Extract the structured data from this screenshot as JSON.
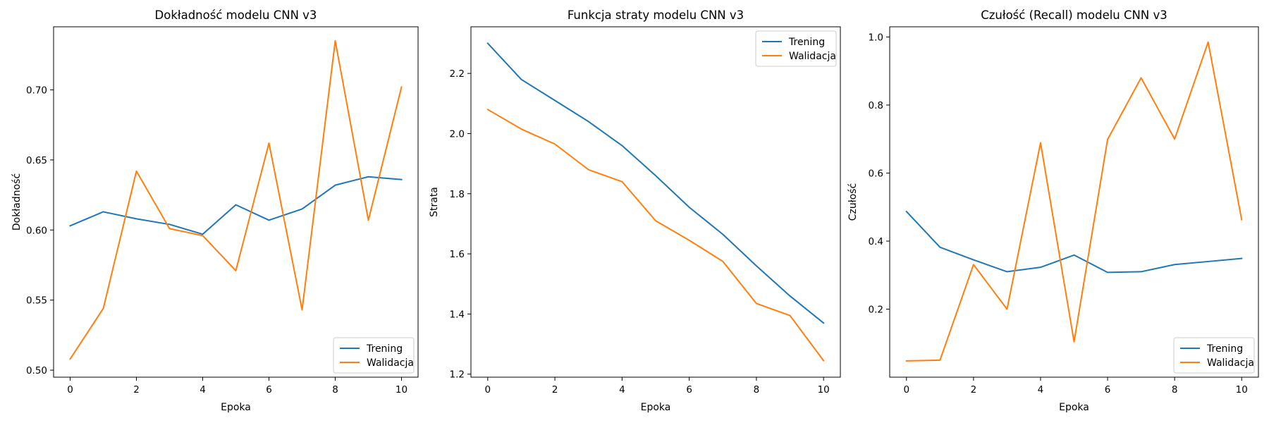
{
  "chart_data": [
    {
      "type": "line",
      "title": "Dokładność modelu CNN v3",
      "xlabel": "Epoka",
      "ylabel": "Dokładność",
      "x": [
        0,
        1,
        2,
        3,
        4,
        5,
        6,
        7,
        8,
        9,
        10
      ],
      "xlim": [
        -0.5,
        10.5
      ],
      "ylim": [
        0.495,
        0.745
      ],
      "xticks": [
        0,
        2,
        4,
        6,
        8,
        10
      ],
      "yticks": [
        0.5,
        0.55,
        0.6,
        0.65,
        0.7
      ],
      "ytick_labels": [
        "0.50",
        "0.55",
        "0.60",
        "0.65",
        "0.70"
      ],
      "legend_position": "lower-right",
      "grid": false,
      "series": [
        {
          "name": "Trening",
          "color": "#1f77b4",
          "values": [
            0.603,
            0.613,
            0.608,
            0.604,
            0.597,
            0.618,
            0.607,
            0.615,
            0.632,
            0.638,
            0.636
          ]
        },
        {
          "name": "Walidacja",
          "color": "#ff7f0e",
          "values": [
            0.508,
            0.544,
            0.642,
            0.601,
            0.596,
            0.571,
            0.662,
            0.543,
            0.735,
            0.607,
            0.702
          ]
        }
      ]
    },
    {
      "type": "line",
      "title": "Funkcja straty modelu CNN v3",
      "xlabel": "Epoka",
      "ylabel": "Strata",
      "x": [
        0,
        1,
        2,
        3,
        4,
        5,
        6,
        7,
        8,
        9,
        10
      ],
      "xlim": [
        -0.5,
        10.5
      ],
      "ylim": [
        1.19,
        2.355
      ],
      "xticks": [
        0,
        2,
        4,
        6,
        8,
        10
      ],
      "yticks": [
        1.2,
        1.4,
        1.6,
        1.8,
        2.0,
        2.2
      ],
      "ytick_labels": [
        "1.2",
        "1.4",
        "1.6",
        "1.8",
        "2.0",
        "2.2"
      ],
      "legend_position": "upper-right",
      "grid": false,
      "series": [
        {
          "name": "Trening",
          "color": "#1f77b4",
          "values": [
            2.3,
            2.18,
            2.11,
            2.04,
            1.96,
            1.86,
            1.755,
            1.665,
            1.56,
            1.46,
            1.37
          ]
        },
        {
          "name": "Walidacja",
          "color": "#ff7f0e",
          "values": [
            2.08,
            2.015,
            1.965,
            1.88,
            1.84,
            1.71,
            1.645,
            1.575,
            1.435,
            1.395,
            1.245
          ]
        }
      ]
    },
    {
      "type": "line",
      "title": "Czułość (Recall) modelu CNN v3",
      "xlabel": "Epoka",
      "ylabel": "Czułość",
      "x": [
        0,
        1,
        2,
        3,
        4,
        5,
        6,
        7,
        8,
        9,
        10
      ],
      "xlim": [
        -0.5,
        10.5
      ],
      "ylim": [
        0.0,
        1.03
      ],
      "xticks": [
        0,
        2,
        4,
        6,
        8,
        10
      ],
      "yticks": [
        0.2,
        0.4,
        0.6,
        0.8,
        1.0
      ],
      "ytick_labels": [
        "0.2",
        "0.4",
        "0.6",
        "0.8",
        "1.0"
      ],
      "legend_position": "lower-right",
      "grid": false,
      "series": [
        {
          "name": "Trening",
          "color": "#1f77b4",
          "values": [
            0.487,
            0.382,
            0.345,
            0.31,
            0.323,
            0.359,
            0.308,
            0.31,
            0.331,
            0.34,
            0.349
          ]
        },
        {
          "name": "Walidacja",
          "color": "#ff7f0e",
          "values": [
            0.048,
            0.05,
            0.331,
            0.2,
            0.689,
            0.104,
            0.699,
            0.88,
            0.7,
            0.985,
            0.463
          ]
        }
      ]
    }
  ]
}
